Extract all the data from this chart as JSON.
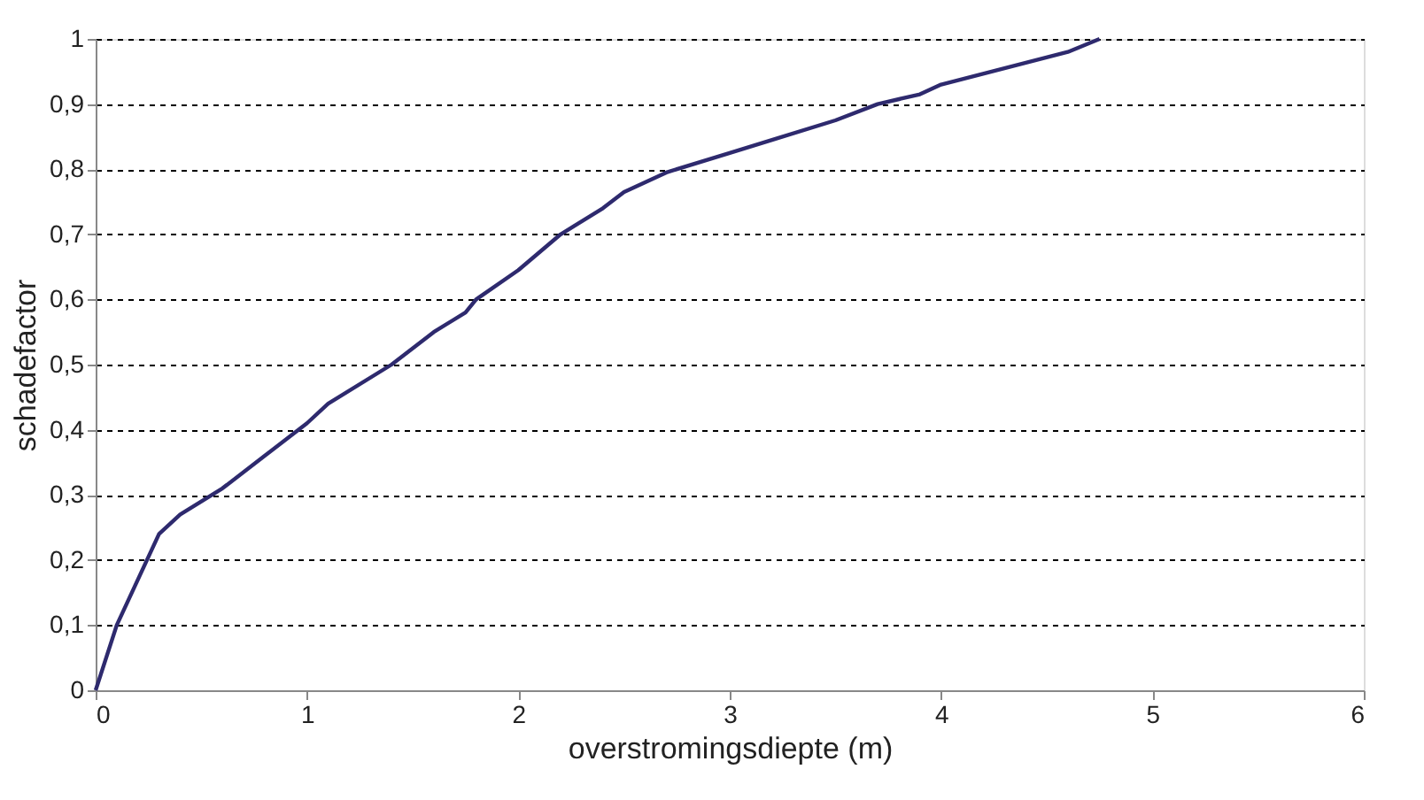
{
  "chart_data": {
    "type": "line",
    "xlabel": "overstromingsdiepte (m)",
    "ylabel": "schadefactor",
    "series": [
      {
        "color": "#2e2a6e",
        "x": [
          0,
          0.1,
          0.3,
          0.4,
          0.6,
          0.8,
          1,
          1.1,
          1.4,
          1.6,
          1.75,
          1.8,
          2,
          2.2,
          2.4,
          2.5,
          2.7,
          3,
          3.2,
          3.5,
          3.7,
          3.9,
          4,
          4.3,
          4.6,
          4.75
        ],
        "values": [
          0,
          0.1,
          0.24,
          0.27,
          0.31,
          0.36,
          0.41,
          0.44,
          0.5,
          0.55,
          0.58,
          0.6,
          0.645,
          0.7,
          0.74,
          0.765,
          0.795,
          0.825,
          0.845,
          0.875,
          0.9,
          0.915,
          0.93,
          0.955,
          0.98,
          1.0
        ]
      }
    ],
    "xlim": [
      0,
      6
    ],
    "xticks": [
      0,
      1,
      2,
      3,
      4,
      5,
      6
    ],
    "ylim": [
      0,
      1
    ],
    "yticks": [
      0,
      {
        "value": 0.1,
        "label": "0,1"
      },
      {
        "value": 0.2,
        "label": "0,2"
      },
      {
        "value": 0.3,
        "label": "0,3"
      },
      {
        "value": 0.4,
        "label": "0,4"
      },
      {
        "value": 0.5,
        "label": "0,5"
      },
      {
        "value": 0.6,
        "label": "0,6"
      },
      {
        "value": 0.7,
        "label": "0,7"
      },
      {
        "value": 0.8,
        "label": "0,8"
      },
      {
        "value": 0.9,
        "label": "0,9"
      },
      1
    ],
    "grid": "y",
    "marker": "none",
    "line_style": "solid"
  }
}
